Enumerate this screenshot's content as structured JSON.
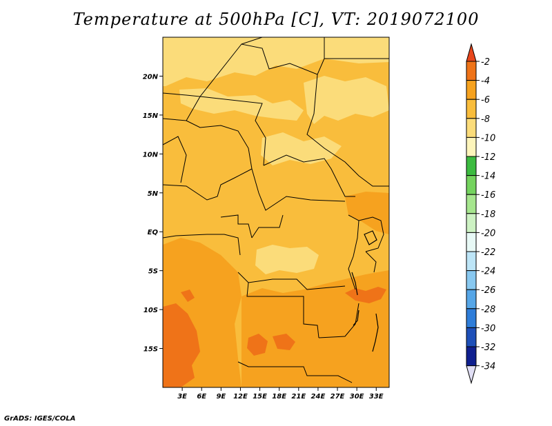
{
  "title": "Temperature at 500hPa [C], VT: 2019072100",
  "credit": "GrADS: IGES/COLA",
  "map": {
    "lon_range": [
      0,
      35
    ],
    "lat_range": [
      -20,
      25
    ],
    "lat_ticks": [
      {
        "value": 20,
        "label": "20N"
      },
      {
        "value": 15,
        "label": "15N"
      },
      {
        "value": 10,
        "label": "10N"
      },
      {
        "value": 5,
        "label": "5N"
      },
      {
        "value": 0,
        "label": "EQ"
      },
      {
        "value": -5,
        "label": "5S"
      },
      {
        "value": -10,
        "label": "10S"
      },
      {
        "value": -15,
        "label": "15S"
      }
    ],
    "lon_ticks": [
      {
        "value": 3,
        "label": "3E"
      },
      {
        "value": 6,
        "label": "6E"
      },
      {
        "value": 9,
        "label": "9E"
      },
      {
        "value": 12,
        "label": "12E"
      },
      {
        "value": 15,
        "label": "15E"
      },
      {
        "value": 18,
        "label": "18E"
      },
      {
        "value": 21,
        "label": "21E"
      },
      {
        "value": 24,
        "label": "24E"
      },
      {
        "value": 27,
        "label": "27E"
      },
      {
        "value": 30,
        "label": "30E"
      },
      {
        "value": 33,
        "label": "33E"
      }
    ]
  },
  "colorbar": {
    "labels": [
      "-2",
      "-4",
      "-6",
      "-8",
      "-10",
      "-12",
      "-14",
      "-16",
      "-18",
      "-20",
      "-22",
      "-24",
      "-26",
      "-28",
      "-30",
      "-32",
      "-34"
    ],
    "colors": [
      "#e8461c",
      "#ef7318",
      "#f6a21f",
      "#f9bd3c",
      "#fbdc7a",
      "#fdf5bb",
      "#3cbb40",
      "#74d35e",
      "#a6e68e",
      "#cdf2c3",
      "#e8f9f6",
      "#bde5f7",
      "#88c8f0",
      "#56a6e7",
      "#2e7dd9",
      "#1d4fb8",
      "#0f1f8f",
      "#06105e"
    ],
    "top_color": "#e8461c",
    "bottom_color": "#e1dff5"
  },
  "field_colors": {
    "t_minus_10": "#fbdc7a",
    "t_minus_8": "#f9bd3c",
    "t_minus_6": "#f6a21f",
    "t_minus_4": "#ef7318"
  }
}
